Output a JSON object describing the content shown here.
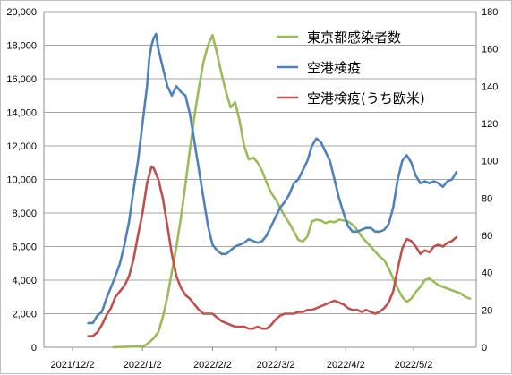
{
  "chart_data": {
    "type": "line",
    "title": "",
    "xlabel": "",
    "ylabel": "",
    "x_tick_labels": [
      "2021/12/2",
      "2022/1/2",
      "2022/2/2",
      "2022/3/2",
      "2022/4/2",
      "2022/5/2"
    ],
    "y_left": {
      "min": 0,
      "max": 20000,
      "ticks": [
        "0",
        "2,000",
        "4,000",
        "6,000",
        "8,000",
        "10,000",
        "12,000",
        "14,000",
        "16,000",
        "18,000",
        "20,000"
      ]
    },
    "y_right": {
      "min": 0,
      "max": 180,
      "ticks": [
        "0",
        "20",
        "40",
        "60",
        "80",
        "100",
        "120",
        "140",
        "160",
        "180"
      ]
    },
    "grid": "horizontal",
    "legend_position": "top-right",
    "series": [
      {
        "name": "東京都感染者数",
        "axis": "left",
        "color": "#9bbb59",
        "points": [
          [
            "2021/12/20",
            0
          ],
          [
            "2021/12/25",
            20
          ],
          [
            "2021/12/31",
            60
          ],
          [
            "2022/1/3",
            100
          ],
          [
            "2022/1/5",
            300
          ],
          [
            "2022/1/7",
            550
          ],
          [
            "2022/1/9",
            900
          ],
          [
            "2022/1/11",
            1800
          ],
          [
            "2022/1/13",
            3000
          ],
          [
            "2022/1/15",
            4500
          ],
          [
            "2022/1/17",
            6000
          ],
          [
            "2022/1/19",
            7700
          ],
          [
            "2022/1/21",
            9700
          ],
          [
            "2022/1/23",
            11800
          ],
          [
            "2022/1/25",
            13800
          ],
          [
            "2022/1/27",
            15500
          ],
          [
            "2022/1/29",
            17000
          ],
          [
            "2022/1/31",
            18000
          ],
          [
            "2022/2/2",
            18600
          ],
          [
            "2022/2/4",
            17500
          ],
          [
            "2022/2/6",
            16300
          ],
          [
            "2022/2/8",
            15200
          ],
          [
            "2022/2/10",
            14300
          ],
          [
            "2022/2/12",
            14600
          ],
          [
            "2022/2/14",
            13500
          ],
          [
            "2022/2/16",
            12000
          ],
          [
            "2022/2/18",
            11200
          ],
          [
            "2022/2/20",
            11300
          ],
          [
            "2022/2/22",
            11000
          ],
          [
            "2022/2/24",
            10500
          ],
          [
            "2022/2/26",
            9800
          ],
          [
            "2022/2/28",
            9200
          ],
          [
            "2022/3/2",
            8800
          ],
          [
            "2022/3/4",
            8300
          ],
          [
            "2022/3/6",
            7800
          ],
          [
            "2022/3/8",
            7400
          ],
          [
            "2022/3/10",
            6900
          ],
          [
            "2022/3/12",
            6400
          ],
          [
            "2022/3/14",
            6300
          ],
          [
            "2022/3/16",
            6600
          ],
          [
            "2022/3/18",
            7500
          ],
          [
            "2022/3/20",
            7600
          ],
          [
            "2022/3/22",
            7550
          ],
          [
            "2022/3/24",
            7400
          ],
          [
            "2022/3/26",
            7500
          ],
          [
            "2022/3/28",
            7450
          ],
          [
            "2022/3/30",
            7600
          ],
          [
            "2022/4/1",
            7550
          ],
          [
            "2022/4/3",
            7500
          ],
          [
            "2022/4/5",
            7300
          ],
          [
            "2022/4/7",
            7000
          ],
          [
            "2022/4/9",
            6600
          ],
          [
            "2022/4/11",
            6300
          ],
          [
            "2022/4/13",
            6000
          ],
          [
            "2022/4/15",
            5700
          ],
          [
            "2022/4/17",
            5400
          ],
          [
            "2022/4/19",
            5200
          ],
          [
            "2022/4/21",
            4700
          ],
          [
            "2022/4/23",
            4100
          ],
          [
            "2022/4/25",
            3500
          ],
          [
            "2022/4/27",
            3000
          ],
          [
            "2022/4/29",
            2700
          ],
          [
            "2022/5/1",
            2900
          ],
          [
            "2022/5/3",
            3300
          ],
          [
            "2022/5/5",
            3600
          ],
          [
            "2022/5/7",
            4000
          ],
          [
            "2022/5/9",
            4100
          ],
          [
            "2022/5/11",
            3900
          ],
          [
            "2022/5/13",
            3700
          ],
          [
            "2022/5/15",
            3600
          ],
          [
            "2022/5/17",
            3500
          ],
          [
            "2022/5/19",
            3400
          ],
          [
            "2022/5/21",
            3300
          ],
          [
            "2022/5/23",
            3200
          ],
          [
            "2022/5/25",
            3000
          ],
          [
            "2022/5/27",
            2900
          ]
        ]
      },
      {
        "name": "空港検疫",
        "axis": "right",
        "color": "#4f81bd",
        "points": [
          [
            "2021/12/9",
            13
          ],
          [
            "2021/12/11",
            13
          ],
          [
            "2021/12/13",
            17
          ],
          [
            "2021/12/15",
            19
          ],
          [
            "2021/12/17",
            26
          ],
          [
            "2021/12/19",
            32
          ],
          [
            "2021/12/21",
            38
          ],
          [
            "2021/12/23",
            45
          ],
          [
            "2021/12/25",
            55
          ],
          [
            "2021/12/27",
            67
          ],
          [
            "2021/12/29",
            84
          ],
          [
            "2021/12/31",
            100
          ],
          [
            "2022/1/2",
            120
          ],
          [
            "2022/1/4",
            140
          ],
          [
            "2022/1/5",
            155
          ],
          [
            "2022/1/6",
            162
          ],
          [
            "2022/1/7",
            166
          ],
          [
            "2022/1/8",
            168
          ],
          [
            "2022/1/9",
            160
          ],
          [
            "2022/1/11",
            150
          ],
          [
            "2022/1/13",
            140
          ],
          [
            "2022/1/15",
            135
          ],
          [
            "2022/1/17",
            140
          ],
          [
            "2022/1/19",
            137
          ],
          [
            "2022/1/21",
            135
          ],
          [
            "2022/1/23",
            125
          ],
          [
            "2022/1/25",
            110
          ],
          [
            "2022/1/27",
            95
          ],
          [
            "2022/1/29",
            80
          ],
          [
            "2022/1/31",
            65
          ],
          [
            "2022/2/2",
            55
          ],
          [
            "2022/2/4",
            52
          ],
          [
            "2022/2/6",
            50
          ],
          [
            "2022/2/8",
            50
          ],
          [
            "2022/2/10",
            52
          ],
          [
            "2022/2/12",
            54
          ],
          [
            "2022/2/14",
            55
          ],
          [
            "2022/2/16",
            56
          ],
          [
            "2022/2/18",
            58
          ],
          [
            "2022/2/20",
            57
          ],
          [
            "2022/2/22",
            56
          ],
          [
            "2022/2/24",
            57
          ],
          [
            "2022/2/26",
            60
          ],
          [
            "2022/2/28",
            65
          ],
          [
            "2022/3/2",
            70
          ],
          [
            "2022/3/4",
            75
          ],
          [
            "2022/3/6",
            78
          ],
          [
            "2022/3/8",
            82
          ],
          [
            "2022/3/10",
            88
          ],
          [
            "2022/3/12",
            90
          ],
          [
            "2022/3/14",
            95
          ],
          [
            "2022/3/16",
            100
          ],
          [
            "2022/3/18",
            108
          ],
          [
            "2022/3/20",
            112
          ],
          [
            "2022/3/22",
            110
          ],
          [
            "2022/3/24",
            105
          ],
          [
            "2022/3/26",
            100
          ],
          [
            "2022/3/28",
            90
          ],
          [
            "2022/3/30",
            80
          ],
          [
            "2022/4/1",
            72
          ],
          [
            "2022/4/3",
            65
          ],
          [
            "2022/4/5",
            62
          ],
          [
            "2022/4/7",
            62
          ],
          [
            "2022/4/9",
            63
          ],
          [
            "2022/4/11",
            64
          ],
          [
            "2022/4/13",
            64
          ],
          [
            "2022/4/15",
            62
          ],
          [
            "2022/4/17",
            62
          ],
          [
            "2022/4/19",
            63
          ],
          [
            "2022/4/21",
            66
          ],
          [
            "2022/4/23",
            75
          ],
          [
            "2022/4/25",
            90
          ],
          [
            "2022/4/27",
            100
          ],
          [
            "2022/4/29",
            103
          ],
          [
            "2022/5/1",
            99
          ],
          [
            "2022/5/3",
            92
          ],
          [
            "2022/5/5",
            88
          ],
          [
            "2022/5/7",
            89
          ],
          [
            "2022/5/9",
            88
          ],
          [
            "2022/5/11",
            89
          ],
          [
            "2022/5/13",
            88
          ],
          [
            "2022/5/15",
            86
          ],
          [
            "2022/5/17",
            89
          ],
          [
            "2022/5/19",
            90
          ],
          [
            "2022/5/21",
            94
          ]
        ]
      },
      {
        "name": "空港検疫(うち欧米)",
        "axis": "right",
        "color": "#c0504d",
        "points": [
          [
            "2021/12/9",
            6
          ],
          [
            "2021/12/11",
            6
          ],
          [
            "2021/12/13",
            8
          ],
          [
            "2021/12/15",
            12
          ],
          [
            "2021/12/17",
            17
          ],
          [
            "2021/12/19",
            21
          ],
          [
            "2021/12/21",
            27
          ],
          [
            "2021/12/23",
            30
          ],
          [
            "2021/12/25",
            33
          ],
          [
            "2021/12/27",
            38
          ],
          [
            "2021/12/29",
            47
          ],
          [
            "2021/12/31",
            60
          ],
          [
            "2022/1/2",
            72
          ],
          [
            "2022/1/4",
            88
          ],
          [
            "2022/1/6",
            97
          ],
          [
            "2022/1/7",
            96
          ],
          [
            "2022/1/9",
            90
          ],
          [
            "2022/1/11",
            80
          ],
          [
            "2022/1/13",
            65
          ],
          [
            "2022/1/15",
            50
          ],
          [
            "2022/1/17",
            38
          ],
          [
            "2022/1/19",
            32
          ],
          [
            "2022/1/21",
            28
          ],
          [
            "2022/1/23",
            26
          ],
          [
            "2022/1/25",
            23
          ],
          [
            "2022/1/27",
            20
          ],
          [
            "2022/1/29",
            18
          ],
          [
            "2022/1/31",
            18
          ],
          [
            "2022/2/2",
            18
          ],
          [
            "2022/2/4",
            16
          ],
          [
            "2022/2/6",
            14
          ],
          [
            "2022/2/8",
            13
          ],
          [
            "2022/2/10",
            12
          ],
          [
            "2022/2/12",
            11
          ],
          [
            "2022/2/14",
            11
          ],
          [
            "2022/2/16",
            11
          ],
          [
            "2022/2/18",
            10
          ],
          [
            "2022/2/20",
            10
          ],
          [
            "2022/2/22",
            11
          ],
          [
            "2022/2/24",
            10
          ],
          [
            "2022/2/26",
            10
          ],
          [
            "2022/2/28",
            12
          ],
          [
            "2022/3/2",
            15
          ],
          [
            "2022/3/4",
            17
          ],
          [
            "2022/3/6",
            18
          ],
          [
            "2022/3/8",
            18
          ],
          [
            "2022/3/10",
            18
          ],
          [
            "2022/3/12",
            19
          ],
          [
            "2022/3/14",
            19
          ],
          [
            "2022/3/16",
            20
          ],
          [
            "2022/3/18",
            20
          ],
          [
            "2022/3/20",
            21
          ],
          [
            "2022/3/22",
            22
          ],
          [
            "2022/3/24",
            23
          ],
          [
            "2022/3/26",
            24
          ],
          [
            "2022/3/28",
            25
          ],
          [
            "2022/3/30",
            24
          ],
          [
            "2022/4/1",
            23
          ],
          [
            "2022/4/3",
            21
          ],
          [
            "2022/4/5",
            20
          ],
          [
            "2022/4/7",
            20
          ],
          [
            "2022/4/9",
            19
          ],
          [
            "2022/4/11",
            20
          ],
          [
            "2022/4/13",
            19
          ],
          [
            "2022/4/15",
            18
          ],
          [
            "2022/4/17",
            19
          ],
          [
            "2022/4/19",
            21
          ],
          [
            "2022/4/21",
            24
          ],
          [
            "2022/4/23",
            30
          ],
          [
            "2022/4/25",
            42
          ],
          [
            "2022/4/27",
            53
          ],
          [
            "2022/4/29",
            58
          ],
          [
            "2022/5/1",
            57
          ],
          [
            "2022/5/3",
            54
          ],
          [
            "2022/5/5",
            50
          ],
          [
            "2022/5/7",
            52
          ],
          [
            "2022/5/9",
            51
          ],
          [
            "2022/5/11",
            54
          ],
          [
            "2022/5/13",
            55
          ],
          [
            "2022/5/15",
            54
          ],
          [
            "2022/5/17",
            56
          ],
          [
            "2022/5/19",
            57
          ],
          [
            "2022/5/21",
            59
          ]
        ]
      }
    ]
  }
}
